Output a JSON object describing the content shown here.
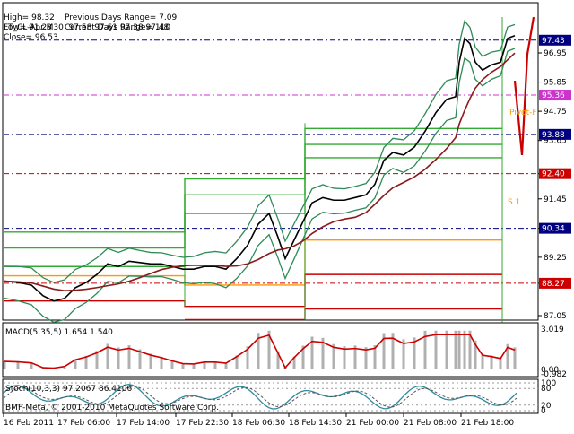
{
  "header": {
    "symbol_line": "FT_CL-Apr,M30  97.58 97.61 97.38 97.48",
    "high_line": "High= 98.32",
    "prev_range_line": "Previous Days Range= 7.09",
    "low_line": "Low= 91.23",
    "curr_range_line": "Current Days Range= 110",
    "close_line": "Close= 96.53"
  },
  "watermark": "BMF-Meta, © 2001-2010 MetaQuotes Software Corp.",
  "main_panel": {
    "price_ticks": [
      "96.95",
      "95.85",
      "94.75",
      "93.65",
      "92.40",
      "91.45",
      "90.34",
      "89.25",
      "88.27",
      "87.05"
    ],
    "tick_values": [
      96.95,
      95.85,
      94.75,
      93.65,
      92.4,
      91.45,
      90.34,
      89.25,
      88.27,
      87.05
    ],
    "highlight_levels": [
      {
        "value": 97.43,
        "label": "97.43",
        "color": "#000080"
      },
      {
        "value": 95.36,
        "label": "95.36",
        "color": "#cc33cc"
      },
      {
        "value": 93.88,
        "label": "93.88",
        "color": "#000080"
      },
      {
        "value": 92.4,
        "label": "92.40",
        "color": "#cc0000"
      },
      {
        "value": 90.34,
        "label": "90.34",
        "color": "#000080"
      },
      {
        "value": 88.27,
        "label": "88.27",
        "color": "#cc0000"
      }
    ],
    "pivot_label": "Pivot-F",
    "s1_label": "S 1",
    "colors": {
      "price": "#000000",
      "bands": "#2e8b57",
      "ma": "#8b1a1a",
      "pivot": "#ff9900",
      "green_levels": "#33aa33",
      "red_levels": "#cc0000"
    }
  },
  "macd_panel": {
    "title": "MACD(5,35,5) 1.654 1.540",
    "ticks": [
      "3.019",
      "0.00",
      "-0.982"
    ]
  },
  "stoch_panel": {
    "title": "Stoch(10,3,3) 97.2067 86.4106",
    "ticks": [
      "100",
      "80",
      "20",
      "0"
    ]
  },
  "time_axis": {
    "labels": [
      "16 Feb 2011",
      "17 Feb 06:00",
      "17 Feb 14:00",
      "17 Feb 22:30",
      "18 Feb 06:30",
      "18 Feb 14:30",
      "21 Feb 00:00",
      "21 Feb 08:00",
      "21 Feb 18:00"
    ]
  }
}
